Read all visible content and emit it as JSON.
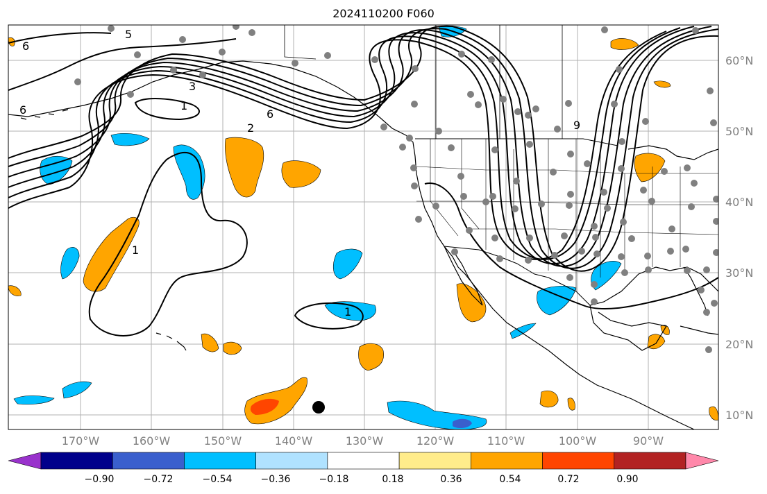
{
  "title": "2024110200 F060",
  "lat_labels": [
    "60°N",
    "50°N",
    "40°N",
    "30°N",
    "20°N",
    "10°N"
  ],
  "lon_labels": [
    "170°W",
    "160°W",
    "150°W",
    "140°W",
    "130°W",
    "120°W",
    "110°W",
    "100°W",
    "90°W"
  ],
  "colorbar": {
    "tick_labels": [
      "−0.90",
      "−0.72",
      "−0.54",
      "−0.36",
      "−0.18",
      "0.18",
      "0.36",
      "0.54",
      "0.72",
      "0.90"
    ],
    "colors": [
      "#9932cc",
      "#00008b",
      "#3a5fcd",
      "#00bfff",
      "#b0e2ff",
      "#ffffff",
      "#ffec8b",
      "#ffa500",
      "#ff4500",
      "#b22222",
      "#ff88aa"
    ]
  },
  "contour_labels": [
    "6",
    "5",
    "6",
    "3",
    "1",
    "6",
    "2",
    "1",
    "1",
    "9"
  ],
  "colors": {
    "positive_fill": "#ffa500",
    "strong_positive_fill": "#ff4500",
    "negative_fill": "#00bfff",
    "strong_negative_fill": "#3a5fcd",
    "station_marker": "#808080"
  }
}
